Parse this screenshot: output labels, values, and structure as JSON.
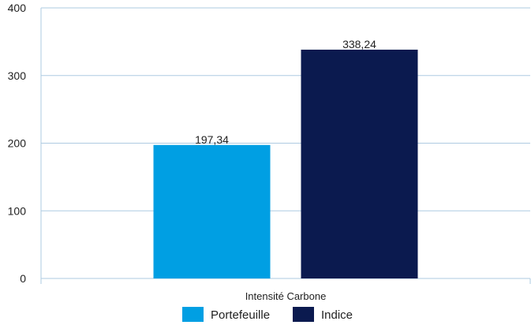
{
  "chart_data": {
    "type": "bar",
    "categories": [
      "Intensité Carbone"
    ],
    "series": [
      {
        "name": "Portefeuille",
        "values": [
          197.34
        ],
        "label": "197,34",
        "color": "#009fe3"
      },
      {
        "name": "Indice",
        "values": [
          338.24
        ],
        "label": "338,24",
        "color": "#0b1a4f"
      }
    ],
    "ylim": [
      0,
      400
    ],
    "yticks": [
      0,
      100,
      200,
      300,
      400
    ],
    "ytick_labels": [
      "0",
      "100",
      "200",
      "300",
      "400"
    ],
    "grid": true,
    "gridline_color": "#aecbe2",
    "legend_position": "bottom"
  }
}
